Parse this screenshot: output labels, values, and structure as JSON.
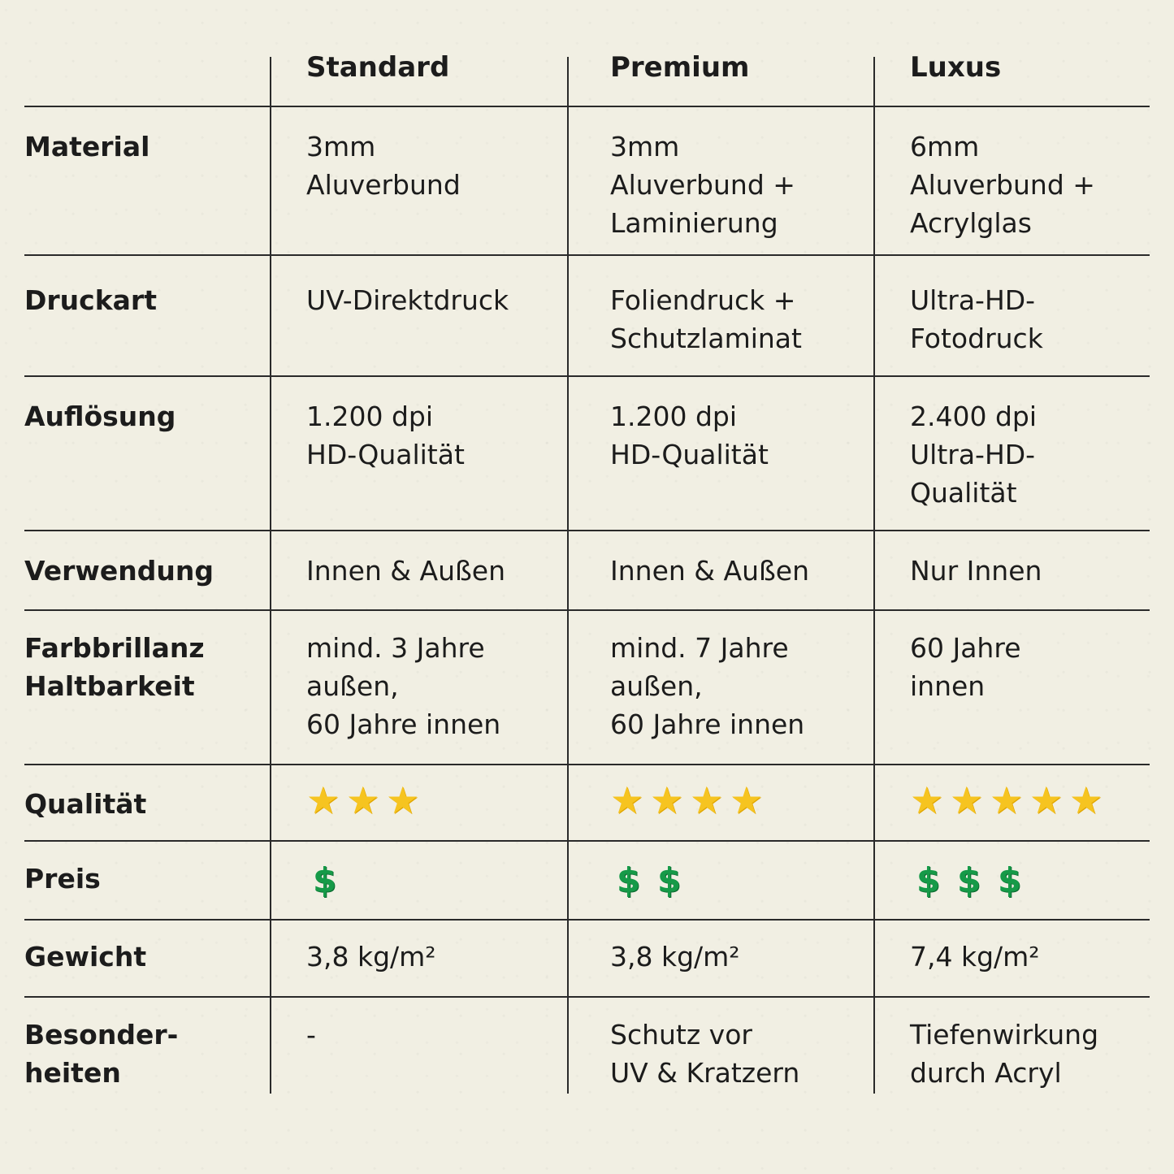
{
  "columns": [
    "Standard",
    "Premium",
    "Luxus"
  ],
  "rows": [
    {
      "label": "Material",
      "values": [
        "3mm\nAluverbund",
        "3mm\nAluverbund +\nLaminierung",
        "6mm\nAluverbund +\nAcrylglas"
      ]
    },
    {
      "label": "Druckart",
      "values": [
        "UV-Direktdruck",
        "Foliendruck +\nSchutzlaminat",
        "Ultra-HD-\nFotodruck"
      ]
    },
    {
      "label": "Auflösung",
      "values": [
        "1.200 dpi\nHD-Qualität",
        "1.200 dpi\nHD-Qualität",
        "2.400 dpi\nUltra-HD-\nQualität"
      ]
    },
    {
      "label": "Verwendung",
      "values": [
        "Innen & Außen",
        "Innen & Außen",
        "Nur Innen"
      ]
    },
    {
      "label": "Farbbrillanz\nHaltbarkeit",
      "values": [
        "mind. 3 Jahre\naußen,\n60 Jahre innen",
        "mind. 7 Jahre\naußen,\n60 Jahre innen",
        "60 Jahre\ninnen"
      ]
    },
    {
      "label": "Qualität",
      "stars": [
        3,
        4,
        5
      ]
    },
    {
      "label": "Preis",
      "dollars": [
        1,
        2,
        3
      ]
    },
    {
      "label": "Gewicht",
      "values": [
        "3,8 kg/m²",
        "3,8 kg/m²",
        "7,4 kg/m²"
      ]
    },
    {
      "label": "Besonder-\nheiten",
      "values": [
        "-",
        "Schutz vor\nUV & Kratzern",
        "Tiefenwirkung\ndurch Acryl"
      ]
    }
  ],
  "icons": {
    "rating": "star-icon",
    "price": "dollar-icon"
  },
  "colors": {
    "star": "#f6c420",
    "dollar": "#169a48",
    "lines": "#2a2a2a",
    "background": "#f1efe3"
  }
}
